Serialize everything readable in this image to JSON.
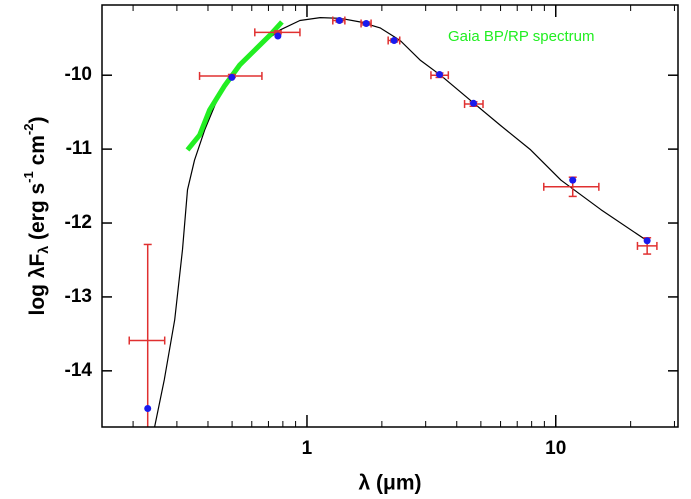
{
  "chart_data": {
    "type": "sed",
    "xlabel": "λ (μm)",
    "ylabel": [
      "log λF",
      "λ",
      " (erg s",
      "-1",
      " cm",
      "-2",
      ")"
    ],
    "annotation": "Gaia BP/RP spectrum",
    "log_x": true,
    "xlim": [
      0.15,
      31
    ],
    "ylim": [
      -14.76,
      -9.05
    ],
    "xticks": [
      1,
      10
    ],
    "xminor_ticks": [
      0.2,
      0.3,
      0.4,
      0.5,
      0.6,
      0.7,
      0.8,
      0.9,
      2,
      3,
      4,
      5,
      6,
      7,
      8,
      9,
      20,
      30
    ],
    "yticks": [
      -10,
      -11,
      -12,
      -13,
      -14
    ],
    "model_spectrum": {
      "color": "#000000",
      "x": [
        0.244,
        0.267,
        0.294,
        0.316,
        0.331,
        0.353,
        0.388,
        0.426,
        0.49,
        0.562,
        0.646,
        0.778,
        0.937,
        1.13,
        1.36,
        1.64,
        1.97,
        2.37,
        2.86,
        3.44,
        4.54,
        6.0,
        7.93,
        10.5,
        15.2,
        23.3
      ],
      "values": [
        -14.76,
        -14.12,
        -13.31,
        -12.36,
        -11.55,
        -11.15,
        -10.74,
        -10.41,
        -10.0,
        -9.8,
        -9.59,
        -9.39,
        -9.26,
        -9.22,
        -9.23,
        -9.28,
        -9.36,
        -9.53,
        -9.8,
        -10.0,
        -10.34,
        -10.68,
        -11.01,
        -11.42,
        -11.82,
        -12.24
      ]
    },
    "gaia_spectrum": {
      "color": "#22ee22",
      "x": [
        0.331,
        0.37,
        0.406,
        0.467,
        0.537,
        0.617,
        0.709,
        0.793
      ],
      "values": [
        -11.01,
        -10.81,
        -10.47,
        -10.14,
        -9.86,
        -9.66,
        -9.46,
        -9.28
      ]
    },
    "observed": {
      "color": "#e03030",
      "x": [
        0.229,
        0.499,
        0.764,
        1.35,
        1.73,
        2.24,
        3.41,
        4.67,
        11.7,
        23.3
      ],
      "x_lo": [
        0.193,
        0.37,
        0.617,
        1.27,
        1.65,
        2.12,
        3.15,
        4.3,
        8.95,
        21.3
      ],
      "x_hi": [
        0.268,
        0.659,
        0.937,
        1.42,
        1.81,
        2.36,
        3.7,
        5.1,
        14.9,
        25.5
      ],
      "values": [
        -13.59,
        -10.01,
        -9.42,
        -9.26,
        -9.3,
        -9.53,
        -10.0,
        -10.39,
        -11.51,
        -12.31
      ],
      "y_err": [
        1.3,
        0.02,
        0.02,
        0.02,
        0.02,
        0.02,
        0.03,
        0.03,
        0.13,
        0.11
      ]
    },
    "model_points": {
      "color": "#1a1aee",
      "x": [
        0.229,
        0.499,
        0.764,
        1.35,
        1.73,
        2.24,
        3.41,
        4.67,
        11.7,
        23.3
      ],
      "values": [
        -14.51,
        -10.03,
        -9.47,
        -9.26,
        -9.3,
        -9.53,
        -9.99,
        -10.38,
        -11.42,
        -12.24
      ]
    }
  }
}
